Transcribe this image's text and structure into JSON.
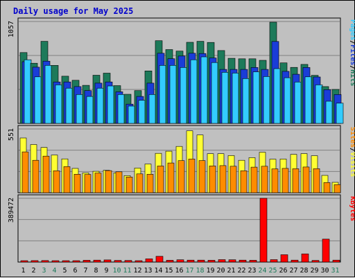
{
  "title": "Daily usage for May 2025",
  "colors": {
    "frame_bg": "#c0c0c0",
    "panel_bg": "#c0c0c0",
    "grid": "#808080",
    "title": "#0000cc",
    "hits": "#1d7a5a",
    "files": "#1a3dd8",
    "pages": "#33ccff",
    "visits": "#ffff33",
    "sites": "#ff8c00",
    "kbytes": "#ff0000",
    "weekend_day": "#1d7a5a",
    "weekday": "#000000"
  },
  "panels": {
    "top": {
      "ymax_label": "1057",
      "legend": [
        "Pages",
        "Files",
        "Hits"
      ]
    },
    "mid": {
      "ymax_label": "551",
      "legend": [
        "Sites",
        "Visits"
      ]
    },
    "bot": {
      "ymax_label": "389472",
      "legend": [
        "KBytes"
      ]
    }
  },
  "chart_data": {
    "type": "bar",
    "title": "Daily usage for May 2025",
    "categories": [
      "1",
      "2",
      "3",
      "4",
      "5",
      "6",
      "7",
      "8",
      "9",
      "10",
      "11",
      "12",
      "13",
      "14",
      "15",
      "16",
      "17",
      "18",
      "19",
      "20",
      "21",
      "22",
      "23",
      "24",
      "25",
      "26",
      "27",
      "28",
      "29",
      "30",
      "31"
    ],
    "weekend_days": [
      3,
      4,
      10,
      11,
      17,
      18,
      24,
      25,
      31
    ],
    "panels": [
      {
        "name": "hits-files-pages",
        "ymax": 1057,
        "series": [
          {
            "name": "Hits",
            "values": [
              735,
              624,
              851,
              602,
              490,
              447,
              395,
              500,
              521,
              392,
              302,
              340,
              544,
              858,
              766,
              750,
              841,
              851,
              840,
              756,
              675,
              670,
              670,
              654,
              1050,
              628,
              581,
              612,
              498,
              382,
              352
            ]
          },
          {
            "name": "Files",
            "values": [
              640,
              583,
              646,
              430,
              430,
              382,
              340,
              418,
              430,
              328,
              200,
              280,
              418,
              728,
              671,
              699,
              728,
              725,
              679,
              560,
              560,
              560,
              580,
              560,
              850,
              540,
              510,
              580,
              482,
              350,
              300
            ]
          },
          {
            "name": "Pages",
            "values": [
              660,
              483,
              602,
              400,
              365,
              300,
              280,
              365,
              388,
              300,
              180,
              240,
              300,
              602,
              602,
              580,
              660,
              690,
              631,
              530,
              522,
              465,
              535,
              486,
              568,
              474,
              429,
              483,
              400,
              230,
              210
            ]
          }
        ]
      },
      {
        "name": "visits-sites",
        "ymax": 551,
        "series": [
          {
            "name": "Visits",
            "values": [
              473,
              416,
              391,
              326,
              292,
              210,
              172,
              185,
              194,
              172,
              148,
              213,
              248,
              340,
              359,
              400,
              535,
              499,
              337,
              337,
              321,
              280,
              303,
              350,
              290,
              291,
              331,
              338,
              320,
              150,
              90
            ]
          },
          {
            "name": "Sites",
            "values": [
              353,
              280,
              316,
              190,
              226,
              160,
              158,
              170,
              191,
              181,
              136,
              163,
              160,
              231,
              257,
              277,
              291,
              278,
              232,
              234,
              229,
              190,
              221,
              229,
              206,
              210,
              207,
              222,
              208,
              88,
              70
            ]
          }
        ]
      },
      {
        "name": "kbytes",
        "ymax": 389472,
        "series": [
          {
            "name": "KBytes",
            "values": [
              8500,
              9000,
              9500,
              8000,
              8200,
              8600,
              11000,
              12000,
              13000,
              10000,
              9800,
              8000,
              20000,
              35000,
              11000,
              14000,
              12000,
              12000,
              11000,
              15000,
              14000,
              12000,
              11000,
              389472,
              15000,
              45000,
              12000,
              50000,
              10000,
              140000,
              12000
            ]
          }
        ]
      }
    ]
  }
}
